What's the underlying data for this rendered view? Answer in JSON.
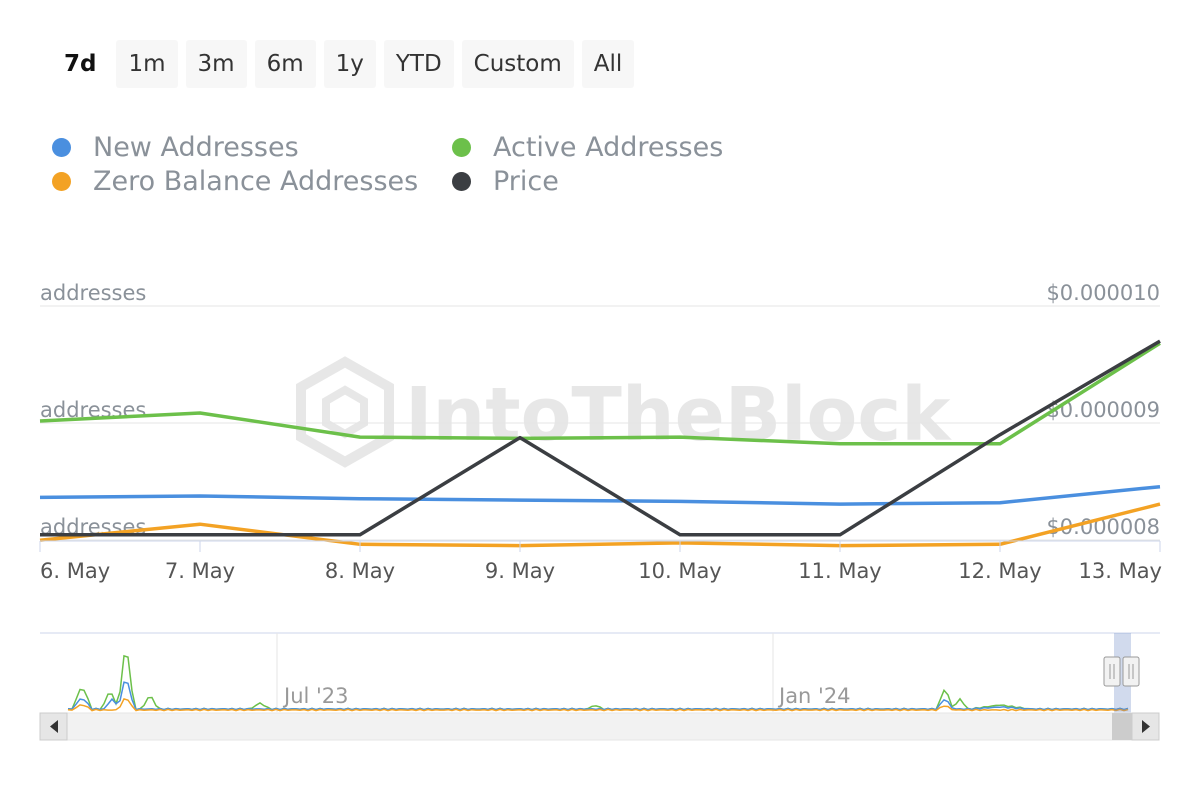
{
  "range_selector": {
    "buttons": [
      "7d",
      "1m",
      "3m",
      "6m",
      "1y",
      "YTD",
      "Custom",
      "All"
    ],
    "active": "7d"
  },
  "watermark": "IntoTheBlock",
  "chart_data": {
    "type": "line",
    "categories": [
      "6. May",
      "7. May",
      "8. May",
      "9. May",
      "10. May",
      "11. May",
      "12. May",
      "13. May"
    ],
    "y_left_axis": {
      "tick_labels": [
        "addresses",
        "addresses",
        "addresses"
      ]
    },
    "y_right_axis": {
      "tick_labels": [
        "$0.000010",
        "$0.000009",
        "$0.000008"
      ],
      "range": [
        8e-06,
        1e-05
      ]
    },
    "grid": true,
    "legend_position": "top",
    "series": [
      {
        "name": "New Addresses",
        "color": "#4a8fdf",
        "axis": "left",
        "values": [
          43,
          44,
          42,
          41,
          40,
          38,
          39,
          51
        ]
      },
      {
        "name": "Active Addresses",
        "color": "#6cc04a",
        "axis": "left",
        "values": [
          100,
          106,
          88,
          87,
          88,
          83,
          83,
          158
        ]
      },
      {
        "name": "Zero Balance Addresses",
        "color": "#f3a224",
        "axis": "left",
        "values": [
          11,
          23,
          8,
          7,
          9,
          7,
          8,
          38
        ]
      },
      {
        "name": "Price",
        "color": "#3b3e42",
        "axis": "right",
        "values": [
          8.0445e-06,
          8.0445e-06,
          8.0445e-06,
          8.875e-06,
          8.0445e-06,
          8.0445e-06,
          8.9e-06,
          9.7e-06
        ]
      }
    ]
  },
  "navigator": {
    "labels": [
      "Jul '23",
      "Jan '24"
    ]
  }
}
